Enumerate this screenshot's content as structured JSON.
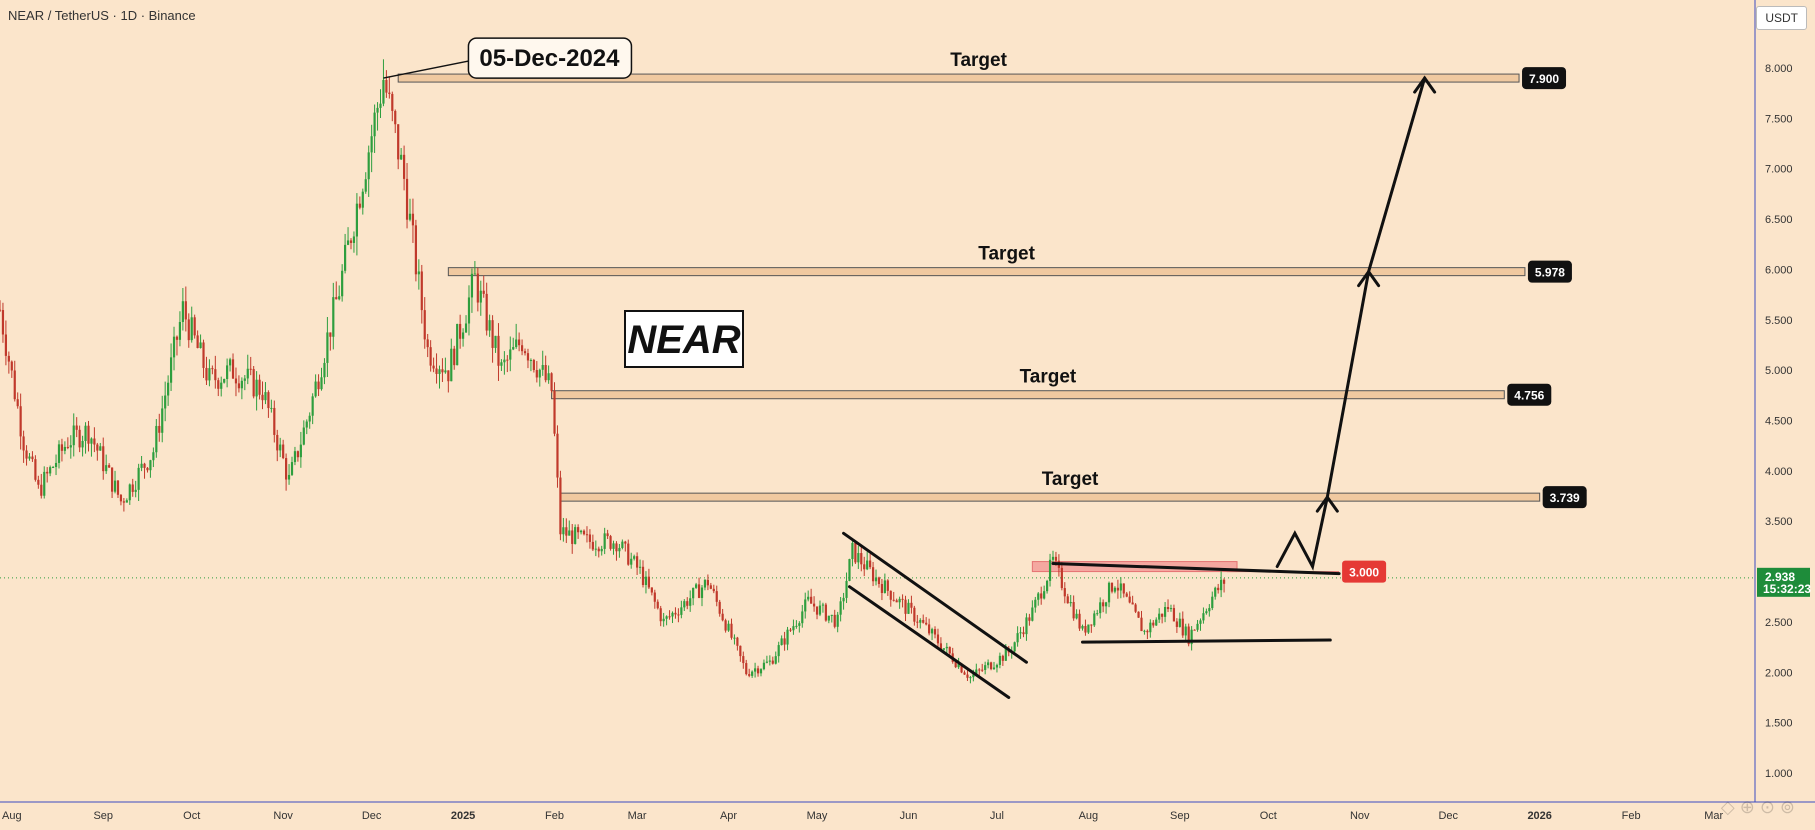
{
  "header": {
    "symbol": "NEAR / TetherUS · 1D · Binance",
    "unit": "USDT"
  },
  "colors": {
    "background": "#fbe5cb",
    "up": "#2e9e3e",
    "down": "#c0392b",
    "target_band_fill": "#f0c9a0",
    "last_price_tag": "#1e8c3a",
    "resistance_tag": "#e53935"
  },
  "chart_data": {
    "type": "candlestick",
    "title": "NEAR",
    "x_ticks": [
      "Aug",
      "Sep",
      "Oct",
      "Nov",
      "Dec",
      "2025",
      "Feb",
      "Mar",
      "Apr",
      "May",
      "Jun",
      "Jul",
      "Aug",
      "Sep",
      "Oct",
      "Nov",
      "Dec",
      "2026",
      "Feb",
      "Mar"
    ],
    "y_ticks": [
      "8.000",
      "7.500",
      "7.000",
      "6.500",
      "6.000",
      "5.500",
      "5.000",
      "4.500",
      "4.000",
      "3.500",
      "3.000",
      "2.500",
      "2.000",
      "1.500",
      "1.000"
    ],
    "ylim": [
      0.75,
      8.9
    ],
    "grid": false,
    "price_path": [
      [
        "2024-07-28",
        5.6
      ],
      [
        "2024-08-05",
        4.3
      ],
      [
        "2024-08-10",
        3.8
      ],
      [
        "2024-08-20",
        4.3
      ],
      [
        "2024-08-27",
        4.4
      ],
      [
        "2024-09-07",
        3.7
      ],
      [
        "2024-09-18",
        4.2
      ],
      [
        "2024-09-28",
        5.6
      ],
      [
        "2024-10-07",
        4.9
      ],
      [
        "2024-10-15",
        5.0
      ],
      [
        "2024-10-25",
        4.8
      ],
      [
        "2024-11-03",
        3.9
      ],
      [
        "2024-11-10",
        4.6
      ],
      [
        "2024-11-20",
        5.8
      ],
      [
        "2024-12-05",
        7.9
      ],
      [
        "2024-12-12",
        6.9
      ],
      [
        "2024-12-20",
        5.2
      ],
      [
        "2024-12-27",
        5.0
      ],
      [
        "2025-01-05",
        5.9
      ],
      [
        "2025-01-14",
        5.0
      ],
      [
        "2025-01-21",
        5.3
      ],
      [
        "2025-01-31",
        4.8
      ],
      [
        "2025-02-03",
        3.4
      ],
      [
        "2025-02-12",
        3.3
      ],
      [
        "2025-02-22",
        3.3
      ],
      [
        "2025-03-02",
        3.0
      ],
      [
        "2025-03-10",
        2.5
      ],
      [
        "2025-03-25",
        2.9
      ],
      [
        "2025-04-07",
        2.0
      ],
      [
        "2025-04-15",
        2.1
      ],
      [
        "2025-04-28",
        2.7
      ],
      [
        "2025-05-08",
        2.5
      ],
      [
        "2025-05-13",
        3.2
      ],
      [
        "2025-05-22",
        2.9
      ],
      [
        "2025-06-05",
        2.5
      ],
      [
        "2025-06-22",
        1.95
      ],
      [
        "2025-07-05",
        2.2
      ],
      [
        "2025-07-13",
        2.6
      ],
      [
        "2025-07-20",
        3.1
      ],
      [
        "2025-07-30",
        2.4
      ],
      [
        "2025-08-10",
        2.9
      ],
      [
        "2025-08-20",
        2.4
      ],
      [
        "2025-08-28",
        2.65
      ],
      [
        "2025-09-04",
        2.35
      ],
      [
        "2025-09-12",
        2.75
      ],
      [
        "2025-09-17",
        2.94
      ]
    ],
    "last_price": 2.938,
    "countdown": "15:32:23",
    "levels": [
      {
        "label": "Target",
        "price": 7.9,
        "tag": "7.900",
        "from": "2024-12-10",
        "to": "2025-12-25"
      },
      {
        "label": "Target",
        "price": 5.978,
        "tag": "5.978",
        "from": "2024-12-27",
        "to": "2025-12-27"
      },
      {
        "label": "Target",
        "price": 4.756,
        "tag": "4.756",
        "from": "2025-01-31",
        "to": "2025-12-20"
      },
      {
        "label": "Target",
        "price": 3.739,
        "tag": "3.739",
        "from": "2025-02-03",
        "to": "2026-01-01"
      }
    ],
    "resistance": {
      "price": 3.0,
      "tag": "3.000"
    },
    "annotations": {
      "peak_date": "05-Dec-2024",
      "title_box": "NEAR"
    }
  }
}
